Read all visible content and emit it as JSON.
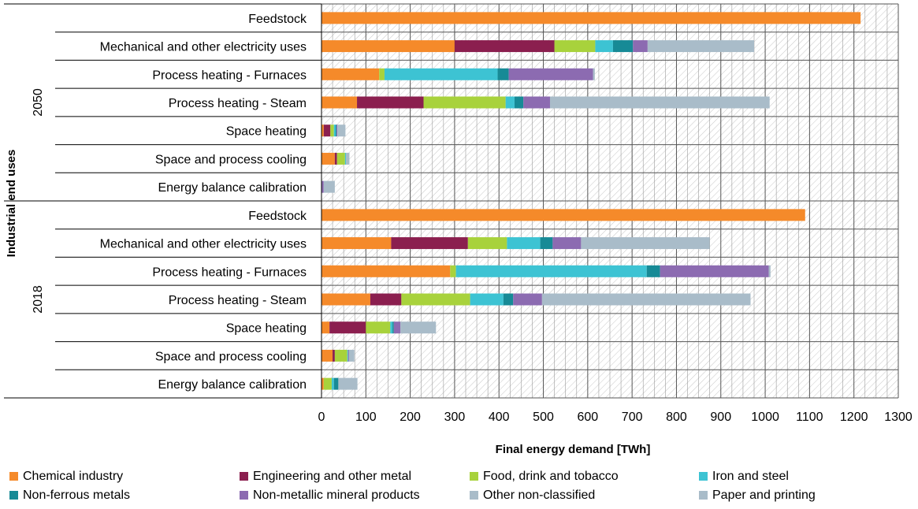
{
  "chart_data": {
    "type": "bar",
    "orientation": "horizontal",
    "stacked": true,
    "title": "",
    "xlabel": "Final energy demand [TWh]",
    "ylabel": "Industrial end uses",
    "xlim": [
      0,
      1300
    ],
    "xticks": [
      0,
      100,
      200,
      300,
      400,
      500,
      600,
      700,
      800,
      900,
      1000,
      1100,
      1200,
      1300
    ],
    "grid": true,
    "legend_position": "bottom",
    "groups": [
      "2050",
      "2018"
    ],
    "categories": [
      "Feedstock",
      "Mechanical and other electricity uses",
      "Process heating - Furnaces",
      "Process heating - Steam",
      "Space heating",
      "Space and process cooling",
      "Energy balance calibration"
    ],
    "series": [
      {
        "name": "Chemical industry",
        "color": "#F58A2A",
        "values_2050": [
          1215,
          300,
          130,
          80,
          5,
          30,
          0
        ],
        "values_2018": [
          1090,
          157,
          290,
          110,
          18,
          25,
          5
        ]
      },
      {
        "name": "Engineering and other metal",
        "color": "#8B1F4F",
        "values_2050": [
          0,
          225,
          0,
          150,
          15,
          5,
          0
        ],
        "values_2018": [
          0,
          173,
          0,
          70,
          82,
          5,
          0
        ]
      },
      {
        "name": "Food, drink and tobacco",
        "color": "#A8D23C",
        "values_2050": [
          0,
          92,
          12,
          185,
          8,
          18,
          0
        ],
        "values_2018": [
          0,
          88,
          13,
          155,
          55,
          28,
          18
        ]
      },
      {
        "name": "Iron and steel",
        "color": "#3DC3D3",
        "values_2050": [
          0,
          40,
          255,
          20,
          4,
          2,
          0
        ],
        "values_2018": [
          0,
          75,
          430,
          75,
          5,
          2,
          5
        ]
      },
      {
        "name": "Non-ferrous metals",
        "color": "#178A96",
        "values_2050": [
          0,
          45,
          25,
          20,
          2,
          0,
          0
        ],
        "values_2018": [
          0,
          28,
          30,
          22,
          3,
          0,
          10
        ]
      },
      {
        "name": "Non-metallic mineral products",
        "color": "#8C6BB1",
        "values_2050": [
          0,
          33,
          190,
          60,
          2,
          0,
          5
        ],
        "values_2018": [
          0,
          64,
          245,
          65,
          15,
          2,
          0
        ]
      },
      {
        "name": "Other non-classified",
        "color": "#A9BCC9",
        "values_2050": [
          0,
          240,
          4,
          495,
          18,
          8,
          25
        ],
        "values_2018": [
          0,
          290,
          4,
          470,
          80,
          12,
          43
        ]
      },
      {
        "name": "Paper and printing",
        "color": "#A9BCC9",
        "values_2050": [
          0,
          0,
          0,
          0,
          0,
          0,
          0
        ],
        "values_2018": [
          0,
          0,
          0,
          0,
          0,
          0,
          0
        ]
      }
    ]
  }
}
